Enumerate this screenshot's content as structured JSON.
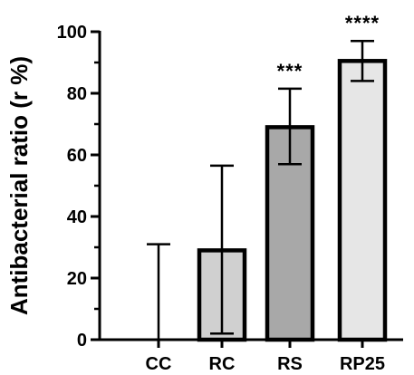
{
  "chart_data": {
    "type": "bar",
    "title": "",
    "xlabel": "",
    "ylabel": "Antibacterial ratio (r %)",
    "ylim": [
      0,
      100
    ],
    "yticks": [
      0,
      20,
      40,
      60,
      80,
      100
    ],
    "grid": false,
    "categories": [
      "CC",
      "RC",
      "RS",
      "RP25"
    ],
    "values": [
      0,
      29,
      69,
      90.5
    ],
    "error_lower": [
      0,
      27,
      12,
      6.5
    ],
    "error_upper": [
      31,
      27.5,
      12.5,
      6.5
    ],
    "significance": [
      "",
      "",
      "***",
      "****"
    ],
    "bar_colors": [
      "#ffffff",
      "#d0d0d0",
      "#a8a8a8",
      "#e6e6e6"
    ]
  }
}
